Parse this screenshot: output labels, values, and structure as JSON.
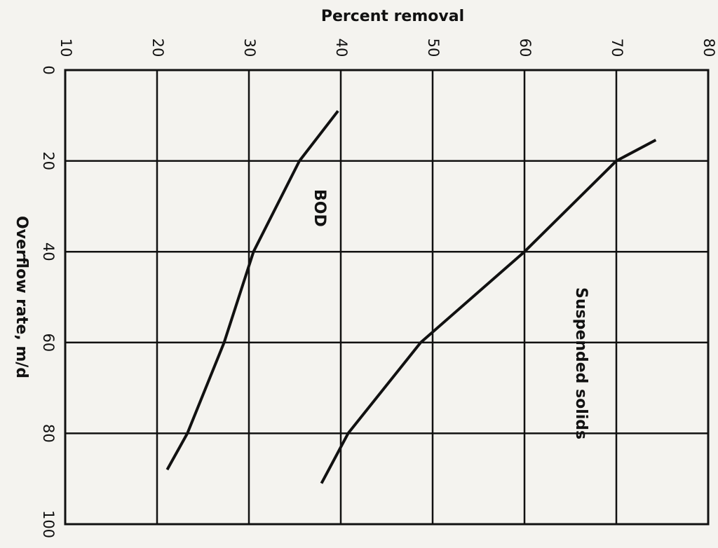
{
  "chart_data": {
    "type": "line",
    "title": "Percent removal",
    "x_label": "Overflow rate, m/d",
    "x": [
      9,
      20,
      40,
      60,
      80,
      88
    ],
    "series": [
      {
        "name": "BOD",
        "color": "#111111",
        "x": [
          9,
          20,
          40,
          60,
          80,
          88
        ],
        "values": [
          39.7,
          35.5,
          30.5,
          27.3,
          23.3,
          21.1
        ]
      },
      {
        "name": "Suspended solids",
        "color": "#111111",
        "x": [
          15.4,
          20,
          40,
          60,
          80,
          91
        ],
        "values": [
          74.3,
          70,
          60,
          48.7,
          40.8,
          37.9
        ]
      }
    ],
    "xlim": [
      0,
      100
    ],
    "xticks": [
      0,
      20,
      40,
      60,
      80,
      100
    ],
    "ylim": [
      10,
      80
    ],
    "yticks": [
      10,
      20,
      30,
      40,
      50,
      60,
      70,
      80
    ],
    "grid": true
  }
}
